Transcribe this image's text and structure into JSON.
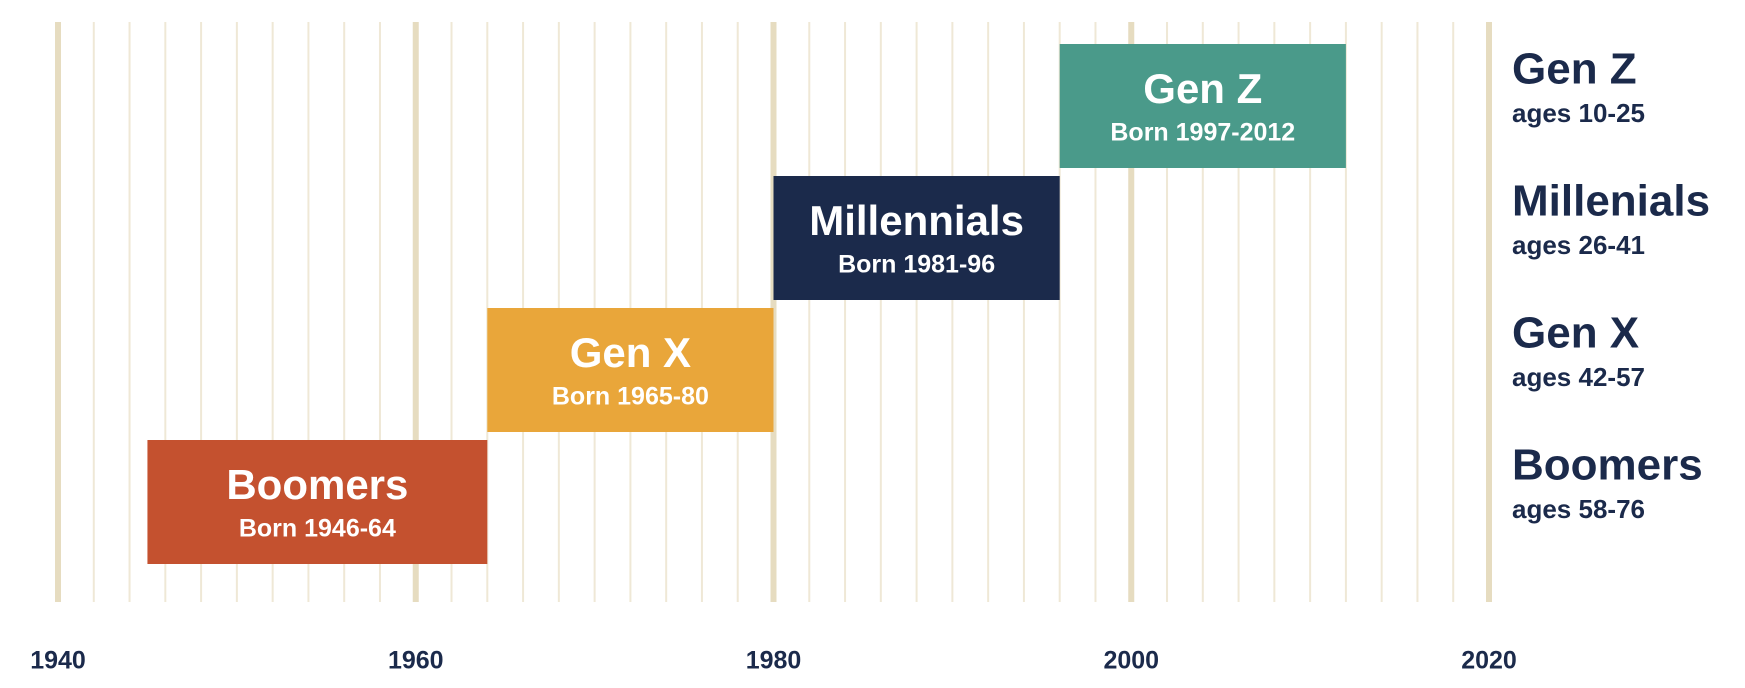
{
  "chart_data": {
    "type": "timeline",
    "xlim": [
      1940,
      2020
    ],
    "xticks": [
      1940,
      1960,
      1980,
      2000,
      2020
    ],
    "minor_xticks": [
      1942,
      1944,
      1946,
      1948,
      1950,
      1952,
      1954,
      1956,
      1958,
      1962,
      1964,
      1966,
      1968,
      1970,
      1972,
      1974,
      1976,
      1978,
      1982,
      1984,
      1986,
      1988,
      1990,
      1992,
      1994,
      1996,
      1998,
      2002,
      2004,
      2006,
      2008,
      2010,
      2012,
      2014,
      2016,
      2018
    ],
    "grid": true,
    "series": [
      {
        "name": "Boomers",
        "label": "Born 1946-64",
        "start": 1945,
        "end": 1964,
        "color": "#c4512f"
      },
      {
        "name": "Gen X",
        "label": "Born 1965-80",
        "start": 1964,
        "end": 1980,
        "color": "#e9a63a"
      },
      {
        "name": "Millennials",
        "label": "Born 1981-96",
        "start": 1980,
        "end": 1996,
        "color": "#1b2a4b"
      },
      {
        "name": "Gen Z",
        "label": "Born 1997-2012",
        "start": 1996,
        "end": 2012,
        "color": "#4a9a8a"
      }
    ],
    "legend": [
      {
        "name": "Gen Z",
        "ages": "ages 10-25"
      },
      {
        "name": "Millenials",
        "ages": "ages 26-41"
      },
      {
        "name": "Gen X",
        "ages": "ages 42-57"
      },
      {
        "name": "Boomers",
        "ages": "ages 58-76"
      }
    ]
  }
}
